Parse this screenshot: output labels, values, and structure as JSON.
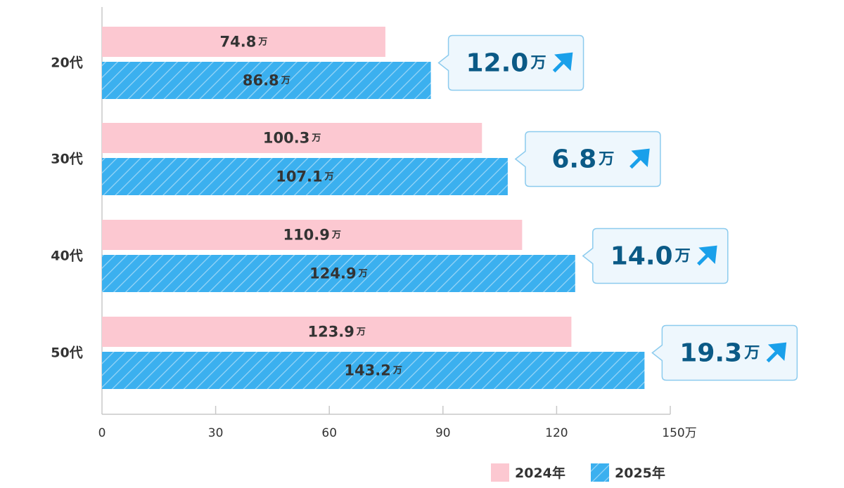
{
  "chart_data": {
    "type": "bar",
    "orientation": "horizontal",
    "categories": [
      "20代",
      "30代",
      "40代",
      "50代"
    ],
    "series": [
      {
        "name": "2024年",
        "values": [
          74.8,
          100.3,
          110.9,
          123.9
        ],
        "labels": [
          "74.8",
          "100.3",
          "110.9",
          "123.9"
        ],
        "color": "#fcc8d1",
        "pattern": "solid"
      },
      {
        "name": "2025年",
        "values": [
          86.8,
          107.1,
          124.9,
          143.2
        ],
        "labels": [
          "86.8",
          "107.1",
          "124.9",
          "143.2"
        ],
        "color": "#3bb0ef",
        "pattern": "diagonal-stripes"
      }
    ],
    "differences": [
      "12.0",
      "6.8",
      "14.0",
      "19.3"
    ],
    "unit": "万",
    "diff_icon": "arrow-up-right-icon",
    "diff_color": "#0b5a86",
    "callout_bg": "#eef7fd",
    "callout_border": "#8ccbee",
    "xlim": [
      0,
      150
    ],
    "xticks": [
      "0",
      "30",
      "60",
      "90",
      "120",
      "150"
    ],
    "xtick_values": [
      0,
      30,
      60,
      90,
      120,
      150
    ],
    "xtick_unit": "万",
    "grid": false,
    "legend": "bottom-right"
  }
}
